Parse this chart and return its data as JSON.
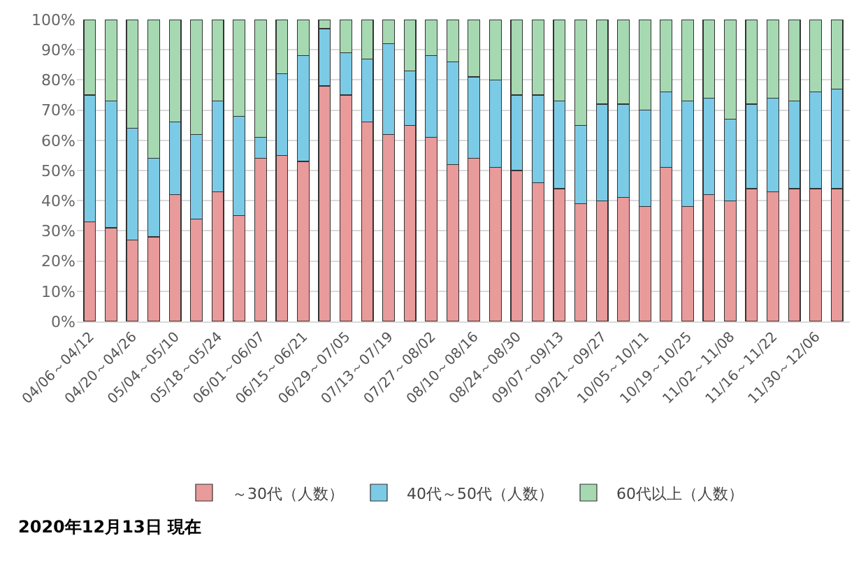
{
  "chart_data": {
    "type": "bar",
    "stacked": true,
    "categories": [
      "04/06～04/12",
      null,
      "04/20～04/26",
      null,
      "05/04～05/10",
      null,
      "05/18～05/24",
      null,
      "06/01～06/07",
      null,
      "06/15～06/21",
      null,
      "06/29～07/05",
      null,
      "07/13～07/19",
      null,
      "07/27～08/02",
      null,
      "08/10～08/16",
      null,
      "08/24～08/30",
      null,
      "09/07～09/13",
      null,
      "09/21～09/27",
      null,
      "10/05～10/11",
      null,
      "10/19～10/25",
      null,
      "11/02～11/08",
      null,
      "11/16～11/22",
      null,
      "11/30～12/06",
      null
    ],
    "series": [
      {
        "name": "～30代（人数）",
        "color": "#e99a9a",
        "values": [
          33,
          31,
          27,
          28,
          42,
          34,
          43,
          35,
          54,
          55,
          53,
          78,
          75,
          66,
          62,
          65,
          61,
          52,
          54,
          51,
          50,
          46,
          44,
          39,
          40,
          41,
          38,
          51,
          38,
          42,
          40,
          44,
          43,
          44,
          44,
          44
        ]
      },
      {
        "name": "40代～50代（人数）",
        "color": "#7ccbe6",
        "values": [
          42,
          42,
          37,
          26,
          24,
          28,
          30,
          33,
          7,
          27,
          35,
          19,
          14,
          21,
          30,
          18,
          27,
          34,
          27,
          29,
          25,
          29,
          29,
          26,
          32,
          31,
          32,
          25,
          35,
          32,
          27,
          28,
          31,
          29,
          32,
          33
        ]
      },
      {
        "name": "60代以上（人数）",
        "color": "#a6d9b2",
        "values": [
          25,
          27,
          36,
          46,
          34,
          38,
          27,
          32,
          39,
          18,
          12,
          3,
          11,
          13,
          8,
          17,
          12,
          14,
          19,
          20,
          25,
          25,
          27,
          35,
          28,
          28,
          30,
          24,
          27,
          26,
          33,
          28,
          26,
          27,
          24,
          23
        ]
      }
    ],
    "ylim": [
      0,
      100
    ],
    "yticks": [
      {
        "value": 0,
        "label": "0%"
      },
      {
        "value": 10,
        "label": "10%"
      },
      {
        "value": 20,
        "label": "20%"
      },
      {
        "value": 30,
        "label": "30%"
      },
      {
        "value": 40,
        "label": "40%"
      },
      {
        "value": 50,
        "label": "50%"
      },
      {
        "value": 60,
        "label": "60%"
      },
      {
        "value": 70,
        "label": "70%"
      },
      {
        "value": 80,
        "label": "80%"
      },
      {
        "value": 90,
        "label": "90%"
      },
      {
        "value": 100,
        "label": "100%"
      }
    ],
    "grid": "y",
    "legend": "bottom",
    "annotations": [
      "2020年12月13日 現在"
    ]
  }
}
